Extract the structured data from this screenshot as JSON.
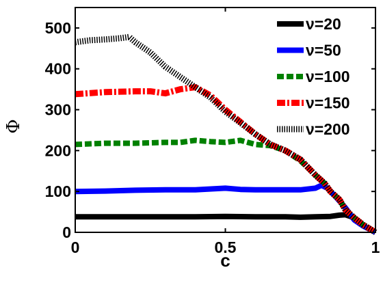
{
  "chart_data": {
    "type": "line",
    "xlabel": "c",
    "ylabel": "Φ",
    "xlim": [
      0,
      1
    ],
    "ylim": [
      0,
      550
    ],
    "x_ticks": [
      0,
      0.5,
      1
    ],
    "x_tick_labels": [
      "0",
      "0.5",
      "1"
    ],
    "y_ticks": [
      0,
      100,
      200,
      300,
      400,
      500
    ],
    "y_tick_labels": [
      "0",
      "100",
      "200",
      "300",
      "400",
      "500"
    ],
    "grid": false,
    "legend_position": "top-right",
    "series": [
      {
        "name": "ν=20",
        "color": "#000000",
        "style": "solid",
        "points": [
          [
            0,
            38
          ],
          [
            0.1,
            38
          ],
          [
            0.2,
            38
          ],
          [
            0.3,
            38
          ],
          [
            0.4,
            38
          ],
          [
            0.5,
            39
          ],
          [
            0.6,
            38
          ],
          [
            0.7,
            38
          ],
          [
            0.75,
            37
          ],
          [
            0.8,
            38
          ],
          [
            0.85,
            39
          ],
          [
            0.88,
            42
          ],
          [
            0.9,
            43
          ],
          [
            0.92,
            38
          ],
          [
            0.95,
            20
          ],
          [
            0.98,
            8
          ],
          [
            1.0,
            0
          ]
        ]
      },
      {
        "name": "ν=50",
        "color": "#0000ff",
        "style": "solid",
        "points": [
          [
            0,
            100
          ],
          [
            0.1,
            101
          ],
          [
            0.2,
            103
          ],
          [
            0.3,
            104
          ],
          [
            0.4,
            104
          ],
          [
            0.5,
            108
          ],
          [
            0.55,
            105
          ],
          [
            0.6,
            104
          ],
          [
            0.7,
            104
          ],
          [
            0.75,
            104
          ],
          [
            0.8,
            108
          ],
          [
            0.82,
            115
          ],
          [
            0.84,
            108
          ],
          [
            0.87,
            85
          ],
          [
            0.9,
            60
          ],
          [
            0.93,
            30
          ],
          [
            0.96,
            15
          ],
          [
            1.0,
            0
          ]
        ]
      },
      {
        "name": "ν=100",
        "color": "#008000",
        "style": "dashed",
        "points": [
          [
            0,
            215
          ],
          [
            0.1,
            218
          ],
          [
            0.2,
            218
          ],
          [
            0.3,
            220
          ],
          [
            0.35,
            220
          ],
          [
            0.4,
            225
          ],
          [
            0.45,
            222
          ],
          [
            0.5,
            220
          ],
          [
            0.55,
            225
          ],
          [
            0.6,
            215
          ],
          [
            0.65,
            212
          ],
          [
            0.7,
            200
          ],
          [
            0.75,
            175
          ],
          [
            0.8,
            140
          ],
          [
            0.83,
            120
          ],
          [
            0.85,
            100
          ],
          [
            0.88,
            80
          ],
          [
            0.9,
            55
          ],
          [
            0.93,
            35
          ],
          [
            0.96,
            18
          ],
          [
            1.0,
            0
          ]
        ]
      },
      {
        "name": "ν=150",
        "color": "#ff0000",
        "style": "dashdot",
        "points": [
          [
            0,
            338
          ],
          [
            0.1,
            343
          ],
          [
            0.2,
            345
          ],
          [
            0.25,
            345
          ],
          [
            0.3,
            340
          ],
          [
            0.35,
            350
          ],
          [
            0.4,
            355
          ],
          [
            0.45,
            335
          ],
          [
            0.5,
            300
          ],
          [
            0.55,
            270
          ],
          [
            0.6,
            240
          ],
          [
            0.65,
            215
          ],
          [
            0.7,
            200
          ],
          [
            0.75,
            178
          ],
          [
            0.8,
            140
          ],
          [
            0.83,
            120
          ],
          [
            0.85,
            100
          ],
          [
            0.88,
            80
          ],
          [
            0.9,
            55
          ],
          [
            0.93,
            35
          ],
          [
            0.96,
            18
          ],
          [
            1.0,
            0
          ]
        ]
      },
      {
        "name": "ν=200",
        "color": "#000000",
        "style": "dotted",
        "points": [
          [
            0,
            465
          ],
          [
            0.05,
            470
          ],
          [
            0.1,
            472
          ],
          [
            0.15,
            475
          ],
          [
            0.18,
            478
          ],
          [
            0.2,
            465
          ],
          [
            0.25,
            440
          ],
          [
            0.3,
            405
          ],
          [
            0.35,
            380
          ],
          [
            0.4,
            355
          ],
          [
            0.45,
            330
          ],
          [
            0.5,
            295
          ],
          [
            0.55,
            268
          ],
          [
            0.6,
            240
          ],
          [
            0.65,
            215
          ],
          [
            0.7,
            200
          ],
          [
            0.75,
            178
          ],
          [
            0.8,
            140
          ],
          [
            0.83,
            120
          ],
          [
            0.85,
            100
          ],
          [
            0.88,
            80
          ],
          [
            0.9,
            55
          ],
          [
            0.93,
            35
          ],
          [
            0.96,
            18
          ],
          [
            1.0,
            0
          ]
        ]
      }
    ]
  }
}
